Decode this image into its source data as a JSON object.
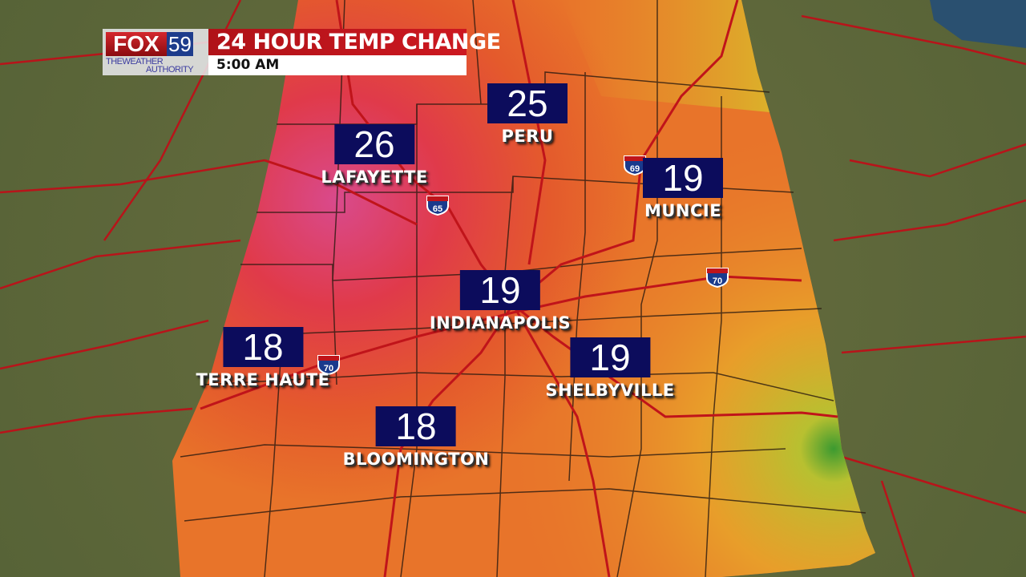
{
  "header": {
    "station_logo": "FOX 59",
    "logo_subtitle": "THE WEATHER AUTHORITY",
    "title": "24 HOUR TEMP CHANGE",
    "time": "5:00 AM"
  },
  "colors": {
    "title_bar": "#c8161e",
    "value_box": "#0c0c5c",
    "roads": "#c0141a",
    "warmest_change": "#e0407a",
    "mid_change": "#e8602a",
    "small_change": "#4aa830"
  },
  "cities": [
    {
      "name": "PERU",
      "value": "25"
    },
    {
      "name": "LAFAYETTE",
      "value": "26"
    },
    {
      "name": "MUNCIE",
      "value": "19"
    },
    {
      "name": "INDIANAPOLIS",
      "value": "19"
    },
    {
      "name": "TERRE HAUTE",
      "value": "18"
    },
    {
      "name": "SHELBYVILLE",
      "value": "19"
    },
    {
      "name": "BLOOMINGTON",
      "value": "18"
    }
  ],
  "interstates": [
    "65",
    "70",
    "70",
    "69"
  ]
}
